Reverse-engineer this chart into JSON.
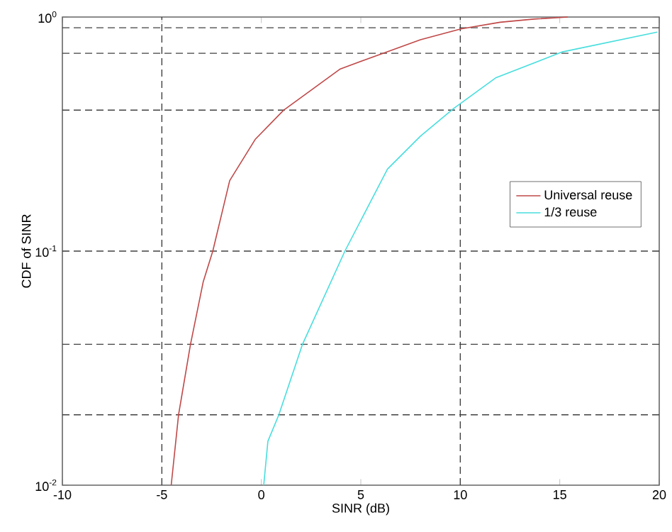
{
  "chart_data": {
    "type": "line",
    "xlabel": "SINR (dB)",
    "ylabel": "CDF of SINR",
    "log": "y",
    "xlim": [
      -10,
      20
    ],
    "xticks": [
      -10,
      -5,
      0,
      5,
      10,
      15,
      20
    ],
    "ylim": [
      0.01,
      1
    ],
    "yticks": [
      {
        "value": 1,
        "label": "10$^{0}$"
      },
      {
        "value": 0.1,
        "label": "10$^{-1}$"
      },
      {
        "value": 0.01,
        "label": "10$^{-2}$"
      }
    ],
    "grid": false,
    "legend": "right",
    "marker": "none",
    "line_style": "solid",
    "ref_lines": [
      {
        "axis": "y",
        "value": 0.9,
        "color": "#404040",
        "line_style": "dashed"
      },
      {
        "axis": "y",
        "value": 0.7,
        "color": "#404040",
        "line_style": "dashed"
      },
      {
        "axis": "y",
        "value": 0.4,
        "color": "#404040",
        "line_style": "dashed"
      },
      {
        "axis": "y",
        "value": 0.1,
        "color": "#404040",
        "line_style": "dashed"
      },
      {
        "axis": "y",
        "value": 0.04,
        "color": "#404040",
        "line_style": "dashed"
      },
      {
        "axis": "y",
        "value": 0.02,
        "color": "#404040",
        "line_style": "dashed"
      },
      {
        "axis": "x",
        "value": -5,
        "color": "#404040",
        "line_style": "dashed"
      },
      {
        "axis": "x",
        "value": 10,
        "color": "#404040",
        "line_style": "dashed"
      }
    ],
    "series": [
      {
        "name": "Universal reuse",
        "color": "#c04848",
        "x": [
          -4.53,
          -4.16,
          -3.56,
          -2.92,
          -2.44,
          -1.59,
          -0.31,
          1.12,
          3.97,
          6.11,
          8,
          10.03,
          12,
          13.7,
          15.4
        ],
        "values": [
          0.01,
          0.02,
          0.04,
          0.074,
          0.1,
          0.2,
          0.3,
          0.4,
          0.6,
          0.7,
          0.8,
          0.89,
          0.95,
          0.98,
          1.0
        ]
      },
      {
        "name": "1/3 reuse",
        "color": "#48dede",
        "x": [
          0.12,
          0.33,
          0.88,
          2.07,
          4.2,
          6.34,
          8.0,
          9.67,
          11.8,
          15.14,
          19.9
        ],
        "values": [
          0.01,
          0.0154,
          0.02,
          0.04,
          0.1,
          0.224,
          0.31,
          0.407,
          0.551,
          0.71,
          0.862
        ]
      }
    ]
  }
}
